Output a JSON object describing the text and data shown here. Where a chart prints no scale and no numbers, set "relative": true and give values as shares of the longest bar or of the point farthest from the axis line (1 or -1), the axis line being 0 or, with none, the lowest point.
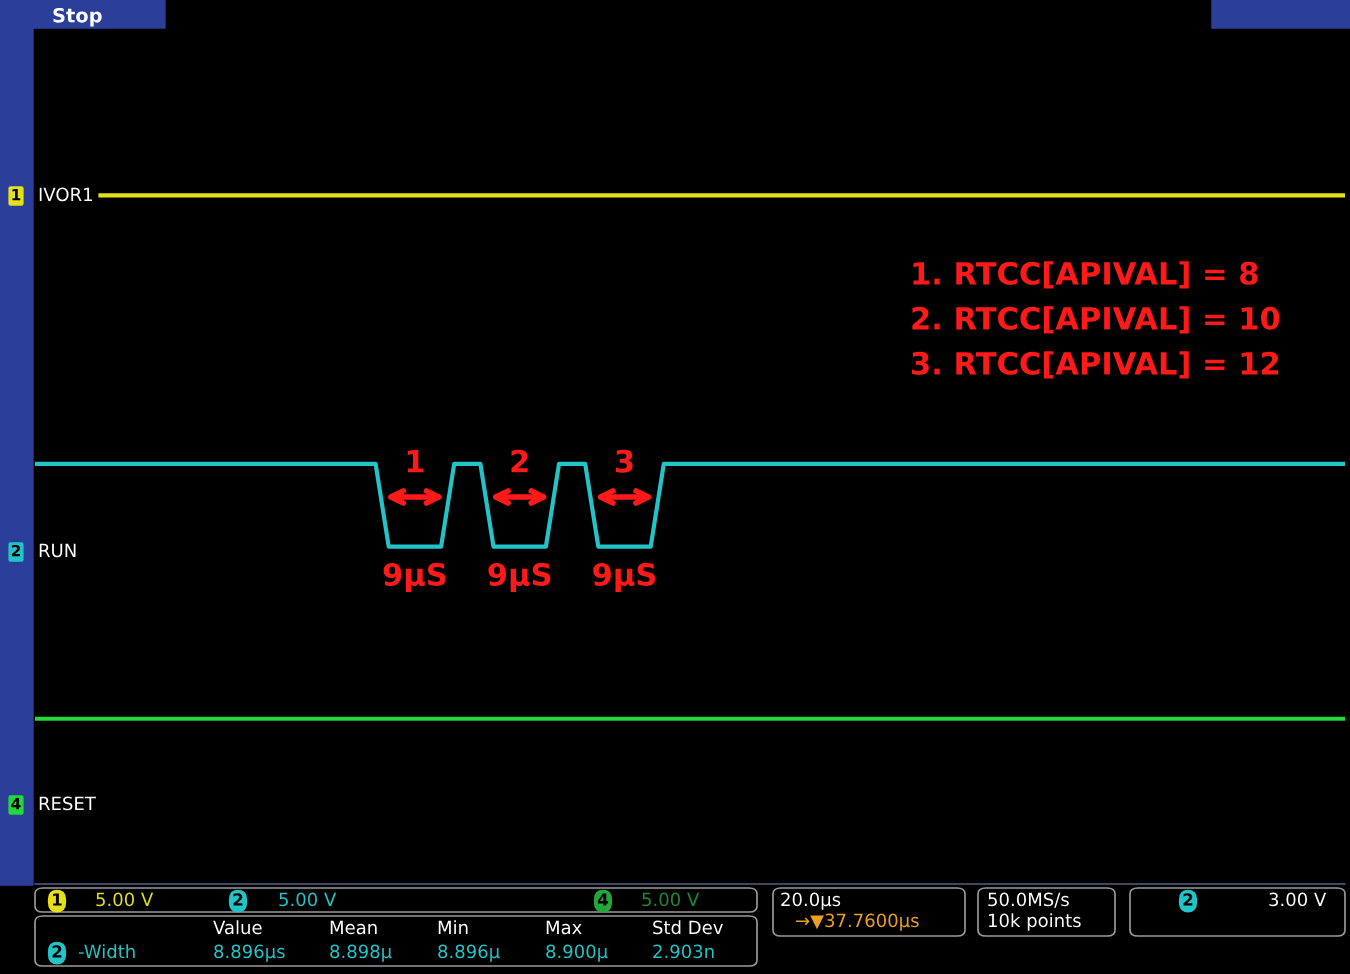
{
  "chart_data": {
    "type": "line",
    "relative": true,
    "tick_labels": false,
    "legend": "left",
    "categories": [
      null,
      null,
      null,
      null,
      null,
      null,
      null,
      null,
      null,
      null,
      null,
      null,
      null,
      null,
      null,
      null,
      null,
      null,
      null,
      null,
      null,
      null,
      null,
      null,
      null,
      null,
      null,
      null,
      null,
      null,
      null,
      null,
      null,
      null,
      null,
      null,
      null,
      null,
      null,
      null,
      null,
      null,
      null,
      null,
      null,
      null,
      null,
      null,
      null,
      null,
      null,
      null,
      null,
      null,
      null,
      null,
      null,
      null,
      null,
      null,
      null,
      null,
      null,
      null,
      null,
      null,
      null,
      null,
      null,
      null,
      null,
      null,
      null,
      null,
      null,
      null,
      null,
      null,
      null,
      null,
      null,
      null,
      null,
      null,
      null,
      null,
      null,
      null,
      null,
      null,
      null,
      null,
      null,
      null,
      null,
      null,
      null,
      null,
      null,
      null,
      null
    ],
    "series": [
      {
        "name": "IVOR1",
        "color": "#e6e01a",
        "values": [
          null,
          null,
          null,
          null,
          null,
          1,
          1,
          1,
          1,
          1,
          1,
          1,
          1,
          1,
          1,
          1,
          1,
          1,
          1,
          1,
          1,
          1,
          1,
          1,
          1,
          1,
          1,
          1,
          1,
          1,
          1,
          1,
          1,
          1,
          1,
          1,
          1,
          1,
          1,
          1,
          1,
          1,
          1,
          1,
          1,
          1,
          1,
          1,
          1,
          1,
          1,
          1,
          1,
          1,
          1,
          1,
          1,
          1,
          1,
          1,
          1,
          1,
          1,
          1,
          1,
          1,
          1,
          1,
          1,
          1,
          1,
          1,
          1,
          1,
          1,
          1,
          1,
          1,
          1,
          1,
          1,
          1,
          1,
          1,
          1,
          1,
          1,
          1,
          1,
          1,
          1,
          1,
          1,
          1,
          1,
          1,
          1,
          1,
          1,
          1,
          1
        ]
      },
      {
        "name": "RUN",
        "color": "#22c4c8",
        "values": [
          0.61,
          0.61,
          0.61,
          0.61,
          0.61,
          0.61,
          0.61,
          0.61,
          0.61,
          0.61,
          0.61,
          0.61,
          0.61,
          0.61,
          0.61,
          0.61,
          0.61,
          0.61,
          0.61,
          0.61,
          0.61,
          0.61,
          0.61,
          0.61,
          0.61,
          0.61,
          0.61,
          0.49,
          0.49,
          0.49,
          0.49,
          0.49,
          0.61,
          0.61,
          0.61,
          0.49,
          0.49,
          0.49,
          0.49,
          0.49,
          0.61,
          0.61,
          0.61,
          0.49,
          0.49,
          0.49,
          0.49,
          0.49,
          0.61,
          0.61,
          0.61,
          0.61,
          0.61,
          0.61,
          0.61,
          0.61,
          0.61,
          0.61,
          0.61,
          0.61,
          0.61,
          0.61,
          0.61,
          0.61,
          0.61,
          0.61,
          0.61,
          0.61,
          0.61,
          0.61,
          0.61,
          0.61,
          0.61,
          0.61,
          0.61,
          0.61,
          0.61,
          0.61,
          0.61,
          0.61,
          0.61,
          0.61,
          0.61,
          0.61,
          0.61,
          0.61,
          0.61,
          0.61,
          0.61,
          0.61,
          0.61,
          0.61,
          0.61,
          0.61,
          0.61,
          0.61,
          0.61,
          0.61,
          0.61,
          0.61,
          0.61
        ]
      },
      {
        "name": "RESET",
        "color": "#22d83a",
        "values": [
          0.24,
          0.24,
          0.24,
          0.24,
          0.24,
          0.24,
          0.24,
          0.24,
          0.24,
          0.24,
          0.24,
          0.24,
          0.24,
          0.24,
          0.24,
          0.24,
          0.24,
          0.24,
          0.24,
          0.24,
          0.24,
          0.24,
          0.24,
          0.24,
          0.24,
          0.24,
          0.24,
          0.24,
          0.24,
          0.24,
          0.24,
          0.24,
          0.24,
          0.24,
          0.24,
          0.24,
          0.24,
          0.24,
          0.24,
          0.24,
          0.24,
          0.24,
          0.24,
          0.24,
          0.24,
          0.24,
          0.24,
          0.24,
          0.24,
          0.24,
          0.24,
          0.24,
          0.24,
          0.24,
          0.24,
          0.24,
          0.24,
          0.24,
          0.24,
          0.24,
          0.24,
          0.24,
          0.24,
          0.24,
          0.24,
          0.24,
          0.24,
          0.24,
          0.24,
          0.24,
          0.24,
          0.24,
          0.24,
          0.24,
          0.24,
          0.24,
          0.24,
          0.24,
          0.24,
          0.24,
          0.24,
          0.24,
          0.24,
          0.24,
          0.24,
          0.24,
          0.24,
          0.24,
          0.24,
          0.24,
          0.24,
          0.24,
          0.24,
          0.24,
          0.24,
          0.24,
          0.24,
          0.24,
          0.24,
          0.24,
          0.24
        ]
      }
    ],
    "annotations": [
      "Stop",
      "1. RTCC[APIVAL] = 8",
      "2. RTCC[APIVAL] = 10",
      "3. RTCC[APIVAL] = 12",
      "1",
      "2",
      "3",
      "9µS",
      "9µS",
      "9µS",
      "1",
      "2",
      "4",
      "1",
      "5.00 V",
      "2",
      "5.00 V",
      "4",
      "5.00 V",
      "20.0µs",
      "→▼37.7600µs",
      "50.0MS/s",
      "10k points",
      "2",
      "3.00 V",
      "2",
      "-Width",
      "Value",
      "Mean",
      "Min",
      "Max",
      "Std Dev",
      "8.896µs",
      "8.898µ",
      "8.896µ",
      "8.900µ",
      "2.903n"
    ]
  }
}
